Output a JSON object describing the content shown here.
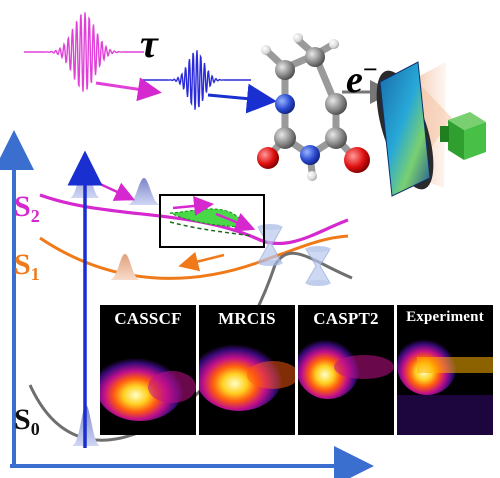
{
  "labels": {
    "delay": "τ",
    "electron": "e",
    "electron_charge": "−",
    "state_s2": "S",
    "state_s2_index": "2",
    "state_s1": "S",
    "state_s1_index": "1",
    "state_s0": "S",
    "state_s0_index": "0"
  },
  "panels": [
    {
      "label": "CASSCF"
    },
    {
      "label": "MRCIS"
    },
    {
      "label": "CASPT2"
    },
    {
      "label": "Experiment"
    }
  ],
  "colors": {
    "pump_pulse": "#e040d8",
    "probe_pulse": "#2a2ad8",
    "s2_curve": "#d528cf",
    "s1_curve": "#f07a1a",
    "s0_curve": "#6f6f6f",
    "axes": "#3a6fd0",
    "excitation_arrow": "#1a2fd0",
    "wavepacket_green": "#48d848"
  },
  "icons": [
    "molecule-icon",
    "detector-icon",
    "camera-icon"
  ]
}
